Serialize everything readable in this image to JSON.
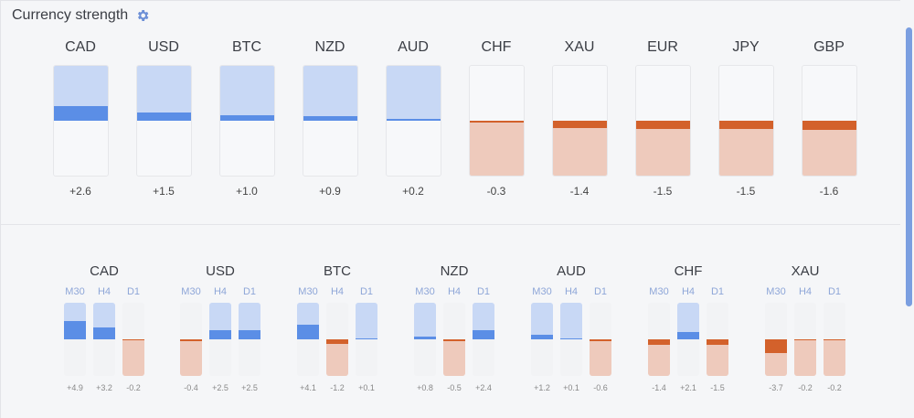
{
  "header": {
    "title": "Currency strength",
    "settings_icon": "gear-icon"
  },
  "colors": {
    "pos_light": "#c8d8f5",
    "pos_dark": "#5b8ee6",
    "neg_light": "#eecabc",
    "neg_dark": "#d3612b"
  },
  "overall": [
    {
      "name": "CAD",
      "value": "+2.6"
    },
    {
      "name": "USD",
      "value": "+1.5"
    },
    {
      "name": "BTC",
      "value": "+1.0"
    },
    {
      "name": "NZD",
      "value": "+0.9"
    },
    {
      "name": "AUD",
      "value": "+0.2"
    },
    {
      "name": "CHF",
      "value": "-0.3"
    },
    {
      "name": "XAU",
      "value": "-1.4"
    },
    {
      "name": "EUR",
      "value": "-1.5"
    },
    {
      "name": "JPY",
      "value": "-1.5"
    },
    {
      "name": "GBP",
      "value": "-1.6"
    }
  ],
  "timeframe_labels": [
    "M30",
    "H4",
    "D1"
  ],
  "by_timeframe": [
    {
      "name": "CAD",
      "values": [
        "+4.9",
        "+3.2",
        "-0.2"
      ]
    },
    {
      "name": "USD",
      "values": [
        "-0.4",
        "+2.5",
        "+2.5"
      ]
    },
    {
      "name": "BTC",
      "values": [
        "+4.1",
        "-1.2",
        "+0.1"
      ]
    },
    {
      "name": "NZD",
      "values": [
        "+0.8",
        "-0.5",
        "+2.4"
      ]
    },
    {
      "name": "AUD",
      "values": [
        "+1.2",
        "+0.1",
        "-0.6"
      ]
    },
    {
      "name": "CHF",
      "values": [
        "-1.4",
        "+2.1",
        "-1.5"
      ]
    },
    {
      "name": "XAU",
      "values": [
        "-3.7",
        "-0.2",
        "-0.2"
      ]
    }
  ]
}
